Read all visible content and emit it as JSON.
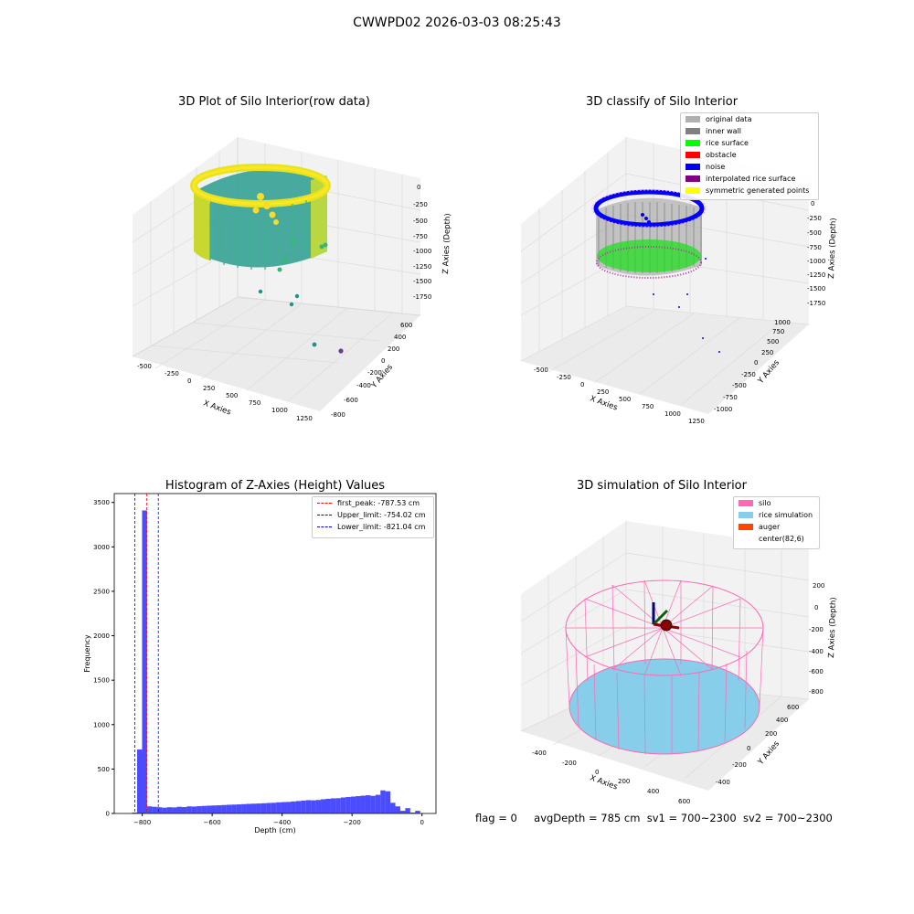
{
  "figure": {
    "suptitle": "CWWPD02 2026-03-03 08:25:43",
    "footer": {
      "flag": "flag = 0",
      "avg": "avgDepth = 785 cm",
      "sv1": "sv1 = 700~2300",
      "sv2": "sv2 = 700~2300"
    }
  },
  "chart_data": [
    {
      "type": "scatter",
      "title": "3D Plot of Silo Interior(row data)",
      "xlabel": "X Axies",
      "ylabel": "Y Axies",
      "zlabel": "Z Axies (Depth)",
      "x_ticks": [
        "-500",
        "-250",
        "0",
        "250",
        "500",
        "750",
        "1000",
        "1250"
      ],
      "y_ticks": [
        "-800",
        "-600",
        "-400",
        "-200",
        "0",
        "200",
        "400",
        "600"
      ],
      "z_ticks": [
        "0",
        "-250",
        "-500",
        "-750",
        "-1000",
        "-1250",
        "-1500",
        "-1750"
      ],
      "colormap": "viridis"
    },
    {
      "type": "scatter",
      "title": "3D classify of Silo Interior",
      "xlabel": "X Axies",
      "ylabel": "Y Axies",
      "zlabel": "Z Axies (Depth)",
      "x_ticks": [
        "-500",
        "-250",
        "0",
        "250",
        "500",
        "750",
        "1000",
        "1250"
      ],
      "y_ticks": [
        "-1000",
        "-750",
        "-500",
        "-250",
        "0",
        "250",
        "500",
        "750",
        "1000"
      ],
      "z_ticks": [
        "0",
        "-250",
        "-500",
        "-750",
        "-1000",
        "-1250",
        "-1500",
        "-1750"
      ],
      "legend_position": "top-right",
      "legend": [
        {
          "label": "original data",
          "color": "#b0b0b0"
        },
        {
          "label": "inner wall",
          "color": "#808080"
        },
        {
          "label": "rice surface",
          "color": "#00ff00"
        },
        {
          "label": "obstacle",
          "color": "#ff0000"
        },
        {
          "label": "noise",
          "color": "#0000ff"
        },
        {
          "label": "interpolated rice surface",
          "color": "#800080"
        },
        {
          "label": "symmetric generated points",
          "color": "#ffff00"
        }
      ]
    },
    {
      "type": "bar",
      "title": "Histogram of Z-Axies (Height) Values",
      "xlabel": "Depth (cm)",
      "ylabel": "Frequency",
      "xlim": [
        -880,
        40
      ],
      "ylim": [
        0,
        3600
      ],
      "x_ticks": [
        -800,
        -600,
        -400,
        -200,
        0
      ],
      "y_ticks": [
        0,
        500,
        1000,
        1500,
        2000,
        2500,
        3000,
        3500
      ],
      "bar_color": "#0000ff",
      "bin_width": 14.2,
      "bin_starts": [
        -828.8,
        -814.6,
        -800.4,
        -786.2,
        -772.0,
        -757.8,
        -743.6,
        -729.4,
        -715.2,
        -701.0,
        -686.8,
        -672.6,
        -658.4,
        -644.2,
        -630.0,
        -615.8,
        -601.6,
        -587.4,
        -573.2,
        -559.0,
        -544.8,
        -530.6,
        -516.4,
        -502.2,
        -488.0,
        -473.8,
        -459.6,
        -445.4,
        -431.2,
        -417.0,
        -402.8,
        -388.6,
        -374.4,
        -360.2,
        -346.0,
        -331.8,
        -317.6,
        -303.4,
        -289.2,
        -275.0,
        -260.8,
        -246.6,
        -232.4,
        -218.2,
        -204.0,
        -189.8,
        -175.6,
        -161.4,
        -147.2,
        -133.0,
        -118.8,
        -104.6,
        -90.4,
        -76.2,
        -62.0,
        -47.8,
        -33.6,
        -19.4
      ],
      "values": [
        10,
        720,
        3410,
        80,
        75,
        70,
        65,
        70,
        68,
        75,
        72,
        80,
        78,
        82,
        85,
        88,
        90,
        92,
        95,
        98,
        100,
        102,
        105,
        108,
        110,
        112,
        115,
        118,
        120,
        125,
        128,
        130,
        135,
        140,
        145,
        150,
        148,
        152,
        160,
        165,
        170,
        172,
        180,
        185,
        190,
        195,
        200,
        205,
        198,
        210,
        260,
        250,
        120,
        80,
        30,
        60,
        10,
        30
      ],
      "vlines": [
        {
          "label": "first_peak: -787.53 cm",
          "x": -787.53,
          "color": "#ff0000"
        },
        {
          "label": "Upper_limit: -754.02 cm",
          "x": -754.02,
          "color": "#0000ff"
        },
        {
          "label": "Lower_limit: -821.04 cm",
          "x": -821.04,
          "color": "#0000ff"
        }
      ],
      "legend_position": "top-right"
    },
    {
      "type": "scatter",
      "title": "3D simulation of Silo Interior",
      "xlabel": "X Axies",
      "ylabel": "Y Axies",
      "zlabel": "Z Axies (Depth)",
      "x_ticks": [
        "-400",
        "-200",
        "0",
        "200",
        "400",
        "600"
      ],
      "y_ticks": [
        "-400",
        "-200",
        "0",
        "200",
        "400",
        "600"
      ],
      "z_ticks": [
        "200",
        "0",
        "-200",
        "-400",
        "-600",
        "-800"
      ],
      "legend_position": "top-right",
      "legend": [
        {
          "label": "silo",
          "color": "#ff69b4"
        },
        {
          "label": "rice simulation",
          "color": "#87ceeb"
        },
        {
          "label": "auger",
          "color": "#ff4500"
        },
        {
          "label": "center(82,6)",
          "color": ""
        }
      ]
    }
  ]
}
